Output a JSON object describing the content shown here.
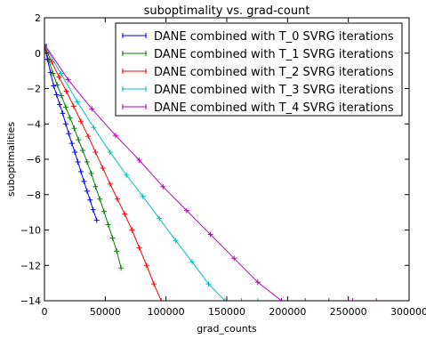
{
  "chart_data": {
    "type": "line",
    "title": "suboptimality vs. grad-count",
    "xlabel": "grad_counts",
    "ylabel": "suboptimalities",
    "xlim": [
      0,
      300000
    ],
    "ylim": [
      -14,
      2
    ],
    "x_ticks": [
      "0",
      "50000",
      "100000",
      "150000",
      "200000",
      "250000",
      "300000"
    ],
    "y_ticks": [
      "2",
      "0",
      "−2",
      "−4",
      "−6",
      "−8",
      "−10",
      "−12",
      "−14"
    ],
    "x_tick_values": [
      0,
      50000,
      100000,
      150000,
      200000,
      250000,
      300000
    ],
    "y_tick_values": [
      2,
      0,
      -2,
      -4,
      -6,
      -8,
      -10,
      -12,
      -14
    ],
    "grid": false,
    "legend_position": "top-right",
    "marker": "+",
    "series": [
      {
        "name": "DANE combined with T_0 SVRG iterations",
        "color": "#0000ff",
        "x": [
          0,
          2500,
          5000,
          7500,
          10000,
          12500,
          15000,
          17500,
          20000,
          22500,
          25000,
          27500,
          30000,
          32500,
          35000,
          37500,
          40000,
          43000
        ],
        "y": [
          0.4,
          -0.35,
          -1.1,
          -1.85,
          -2.35,
          -2.9,
          -3.4,
          -4.0,
          -4.55,
          -5.1,
          -5.6,
          -6.15,
          -6.7,
          -7.25,
          -7.8,
          -8.3,
          -8.85,
          -9.45
        ]
      },
      {
        "name": "DANE combined with T_1 SVRG iterations",
        "color": "#008000",
        "x": [
          0,
          3500,
          7000,
          10500,
          14000,
          17500,
          21000,
          24500,
          28000,
          31500,
          35000,
          38500,
          42000,
          45500,
          49000,
          52500,
          56000,
          59500,
          63000
        ],
        "y": [
          0.4,
          -0.4,
          -1.15,
          -1.8,
          -2.4,
          -3.05,
          -3.65,
          -4.25,
          -4.9,
          -5.5,
          -6.15,
          -6.8,
          -7.55,
          -8.25,
          -8.95,
          -9.7,
          -10.45,
          -11.2,
          -12.15
        ]
      },
      {
        "name": "DANE combined with T_2 SVRG iterations",
        "color": "#ff0000",
        "x": [
          0,
          6000,
          12000,
          18000,
          24000,
          30000,
          36000,
          42000,
          48000,
          54000,
          60000,
          66000,
          72000,
          78000,
          84000,
          90000,
          96000,
          100000
        ],
        "y": [
          0.4,
          -0.5,
          -1.35,
          -2.15,
          -3.0,
          -3.85,
          -4.7,
          -5.6,
          -6.5,
          -7.4,
          -8.25,
          -9.1,
          -10.0,
          -11.0,
          -12.0,
          -13.05,
          -14.0,
          -14.3
        ]
      },
      {
        "name": "DANE combined with T_3 SVRG iterations",
        "color": "#00bfbf",
        "x": [
          0,
          13500,
          27000,
          40500,
          54000,
          67500,
          81000,
          94500,
          108000,
          121500,
          135000,
          148500,
          162000,
          175500
        ],
        "y": [
          0.45,
          -1.15,
          -2.75,
          -4.2,
          -5.6,
          -6.9,
          -8.1,
          -9.35,
          -10.6,
          -11.8,
          -13.05,
          -14.0,
          -14.0,
          -14.0
        ]
      },
      {
        "name": "DANE combined with T_4 SVRG iterations",
        "color": "#bf00bf",
        "x": [
          0,
          19500,
          39000,
          58500,
          78000,
          97500,
          117000,
          136500,
          156000,
          175500,
          195000,
          214500,
          234000,
          253500,
          273000
        ],
        "y": [
          0.5,
          -1.5,
          -3.15,
          -4.65,
          -6.05,
          -7.55,
          -8.9,
          -10.25,
          -11.6,
          -12.95,
          -14.0,
          -14.0,
          -14.0,
          -14.0,
          -14.0
        ]
      }
    ]
  }
}
